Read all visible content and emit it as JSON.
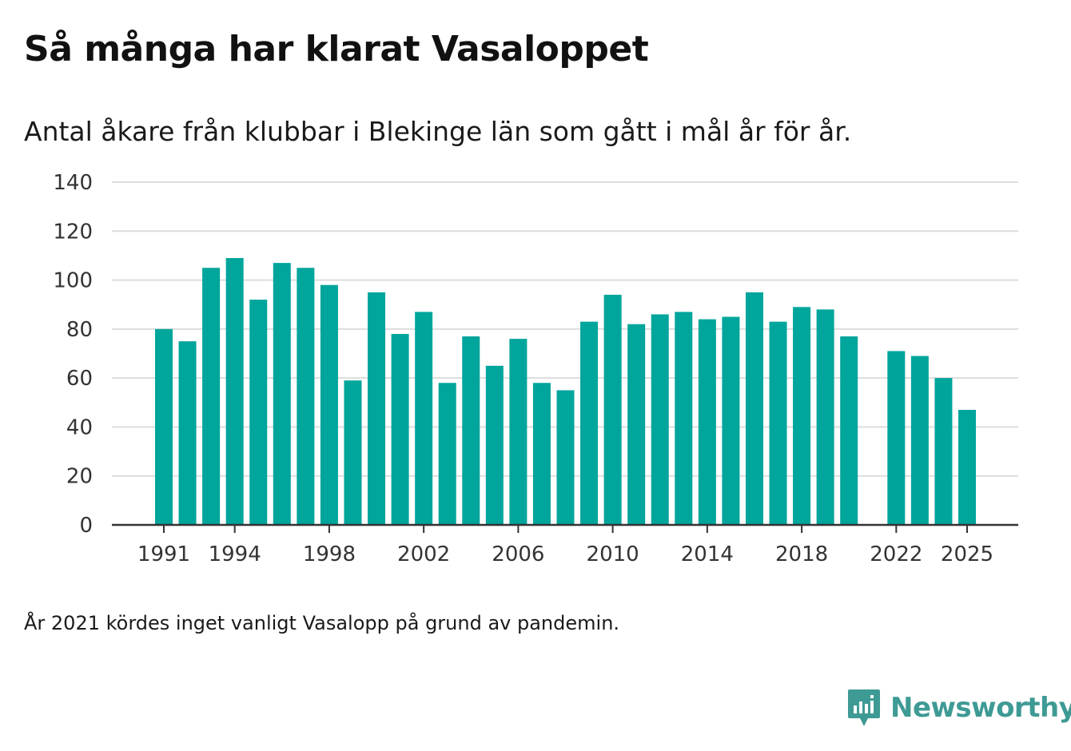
{
  "colors": {
    "bar": "#00a59b",
    "grid": "#dddddd",
    "axis": "#333333",
    "brand": "#3e9a94"
  },
  "chart_data": {
    "type": "bar",
    "title": "Så många har klarat Vasaloppet",
    "subtitle": "Antal åkare från klubbar i Blekinge län som gått i mål år för år.",
    "xlabel": "",
    "ylabel": "",
    "ylim": [
      0,
      140
    ],
    "yticks": [
      0,
      20,
      40,
      60,
      80,
      100,
      120,
      140
    ],
    "xticks": [
      1991,
      1994,
      1998,
      2002,
      2006,
      2010,
      2014,
      2018,
      2022,
      2025
    ],
    "grid": true,
    "x": [
      1991,
      1992,
      1993,
      1994,
      1995,
      1996,
      1997,
      1998,
      1999,
      2000,
      2001,
      2002,
      2003,
      2004,
      2005,
      2006,
      2007,
      2008,
      2009,
      2010,
      2011,
      2012,
      2013,
      2014,
      2015,
      2016,
      2017,
      2018,
      2019,
      2020,
      2021,
      2022,
      2023,
      2024,
      2025
    ],
    "values": [
      80,
      75,
      105,
      109,
      92,
      107,
      105,
      98,
      59,
      95,
      78,
      87,
      58,
      77,
      65,
      76,
      58,
      55,
      83,
      94,
      82,
      86,
      87,
      84,
      85,
      95,
      83,
      89,
      88,
      77,
      null,
      71,
      69,
      60,
      47
    ]
  },
  "footnote": "År 2021 kördes inget vanligt Vasalopp på grund av pandemin.",
  "brand": {
    "name": "Newsworthy",
    "icon": "newsworthy-logo-icon"
  }
}
